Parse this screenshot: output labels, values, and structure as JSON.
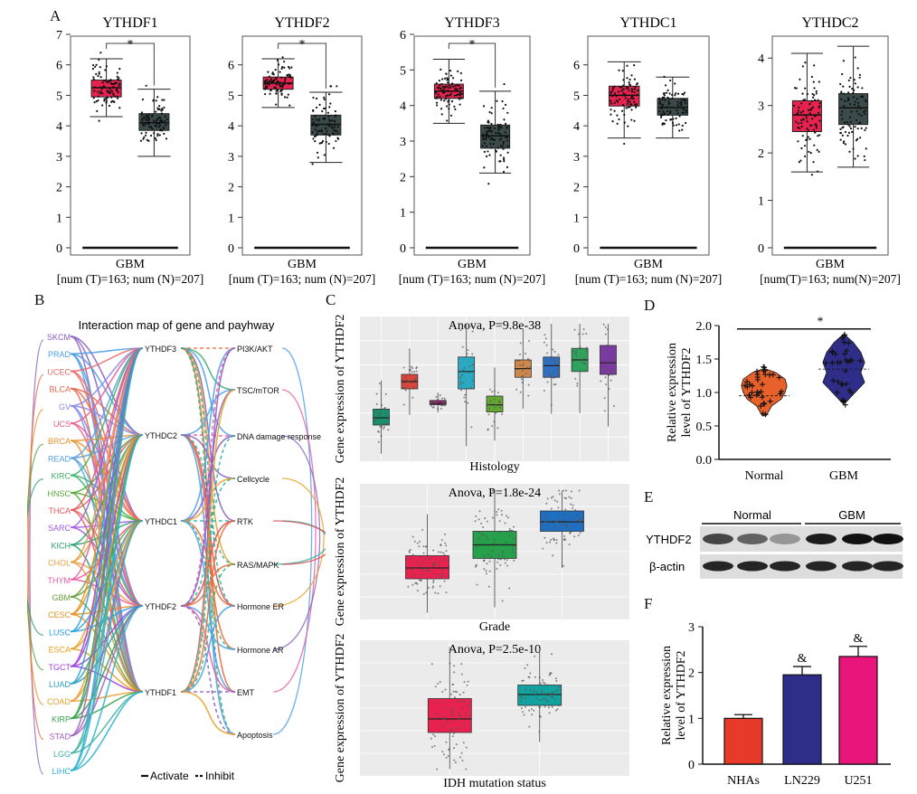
{
  "panel_labels": {
    "A": "A",
    "B": "B",
    "C": "C",
    "D": "D",
    "E": "E",
    "F": "F"
  },
  "colors": {
    "tumor": "#e8224f",
    "normal": "#3b4a4a",
    "mediumblue": "#2e2e8a",
    "pink": "#e8157a",
    "red": "#e83a2a"
  },
  "chart_data": [
    {
      "id": "A1",
      "type": "box",
      "title": "YTHDF1",
      "xlabel": "GBM",
      "sublabel": "[num (T)=163; num (N)=207]",
      "ylim": [
        0,
        7
      ],
      "yticks": [
        0,
        1,
        2,
        3,
        4,
        5,
        6,
        7
      ],
      "sig": "*",
      "groups": [
        {
          "name": "T",
          "q1": 4.95,
          "median": 5.25,
          "q3": 5.5,
          "whislo": 4.3,
          "whishi": 6.2
        },
        {
          "name": "N",
          "q1": 3.85,
          "median": 4.1,
          "q3": 4.4,
          "whislo": 3.0,
          "whishi": 5.2
        }
      ]
    },
    {
      "id": "A2",
      "type": "box",
      "title": "YTHDF2",
      "xlabel": "GBM",
      "sublabel": "[num (T)=163; num (N)=207]",
      "ylim": [
        0,
        7
      ],
      "yticks": [
        0,
        1,
        2,
        3,
        4,
        5,
        6
      ],
      "sig": "*",
      "groups": [
        {
          "name": "T",
          "q1": 5.2,
          "median": 5.4,
          "q3": 5.6,
          "whislo": 4.6,
          "whishi": 6.2
        },
        {
          "name": "N",
          "q1": 3.7,
          "median": 4.05,
          "q3": 4.35,
          "whislo": 2.8,
          "whishi": 5.1
        }
      ]
    },
    {
      "id": "A3",
      "type": "box",
      "title": "YTHDF3",
      "xlabel": "GBM",
      "sublabel": "[num (T)=163; num (N)=207]",
      "ylim": [
        0,
        6
      ],
      "yticks": [
        0,
        1,
        2,
        3,
        4,
        5,
        6
      ],
      "sig": "*",
      "groups": [
        {
          "name": "T",
          "q1": 4.2,
          "median": 4.4,
          "q3": 4.6,
          "whislo": 3.5,
          "whishi": 5.3
        },
        {
          "name": "N",
          "q1": 2.8,
          "median": 3.15,
          "q3": 3.45,
          "whislo": 2.1,
          "whishi": 4.4
        }
      ]
    },
    {
      "id": "A4",
      "type": "box",
      "title": "YTHDC1",
      "xlabel": "GBM",
      "sublabel": "[num (T)=163; num (N)=207]",
      "ylim": [
        0,
        7
      ],
      "yticks": [
        0,
        1,
        2,
        3,
        4,
        5,
        6
      ],
      "sig": "",
      "groups": [
        {
          "name": "T",
          "q1": 4.65,
          "median": 5.0,
          "q3": 5.3,
          "whislo": 3.6,
          "whishi": 6.1
        },
        {
          "name": "N",
          "q1": 4.35,
          "median": 4.6,
          "q3": 4.9,
          "whislo": 3.6,
          "whishi": 5.6
        }
      ]
    },
    {
      "id": "A5",
      "type": "box",
      "title": "YTHDC2",
      "xlabel": "GBM",
      "sublabel": "[num(T)=163; num(N)=207]",
      "ylim": [
        0,
        4.5
      ],
      "yticks": [
        0,
        1,
        2,
        3,
        4
      ],
      "sig": "",
      "groups": [
        {
          "name": "T",
          "q1": 2.45,
          "median": 2.8,
          "q3": 3.1,
          "whislo": 1.6,
          "whishi": 4.1
        },
        {
          "name": "N",
          "q1": 2.6,
          "median": 2.95,
          "q3": 3.25,
          "whislo": 1.7,
          "whishi": 4.25
        }
      ]
    },
    {
      "id": "B",
      "type": "network",
      "title": "Interaction map of gene and payhway",
      "cancers": [
        "SKCM",
        "PRAD",
        "UCEC",
        "BLCA",
        "GV",
        "UCS",
        "BRCA",
        "READ",
        "KIRC",
        "HNSC",
        "THCA",
        "SARC",
        "KICH",
        "CHOL",
        "THYM",
        "GBM",
        "CESC",
        "LUSC",
        "ESCA",
        "TGCT",
        "LUAD",
        "COAD",
        "KIRP",
        "STAD",
        "LGG",
        "LIHC"
      ],
      "genes": [
        "YTHDF3",
        "YTHDC2",
        "YTHDC1",
        "YTHDF2",
        "YTHDF1"
      ],
      "pathways": [
        "PI3K/AKT",
        "TSC/mTOR",
        "DNA damage response",
        "Cellcycle",
        "RTK",
        "RAS/MAPK",
        "Hormone ER",
        "Hormone AR",
        "EMT",
        "Apoptosis"
      ],
      "legend": {
        "activate": "Activate",
        "inhibit": "Inhibit"
      }
    },
    {
      "id": "C1",
      "type": "box",
      "ylabel": "Gene expression of YTHDF2",
      "xlabel": "Histology",
      "annotation": "Anova, P=9.8e-38",
      "groups": [
        {
          "median": 0.3,
          "q1": 0.25,
          "q3": 0.36,
          "color": "#1a8f6e"
        },
        {
          "median": 0.55,
          "q1": 0.5,
          "q3": 0.6,
          "color": "#d9453a"
        },
        {
          "median": 0.4,
          "q1": 0.39,
          "q3": 0.42,
          "color": "#a02070"
        },
        {
          "median": 0.62,
          "q1": 0.5,
          "q3": 0.72,
          "color": "#2aa9c0"
        },
        {
          "median": 0.39,
          "q1": 0.34,
          "q3": 0.45,
          "color": "#62a830"
        },
        {
          "median": 0.64,
          "q1": 0.58,
          "q3": 0.7,
          "color": "#d0884a"
        },
        {
          "median": 0.66,
          "q1": 0.58,
          "q3": 0.72,
          "color": "#2f6fc0"
        },
        {
          "median": 0.7,
          "q1": 0.62,
          "q3": 0.78,
          "color": "#2fa35e"
        },
        {
          "median": 0.68,
          "q1": 0.6,
          "q3": 0.8,
          "color": "#7a3aa0"
        }
      ]
    },
    {
      "id": "C2",
      "type": "box",
      "ylabel": "Gene expression of YTHDF2",
      "xlabel": "Grade",
      "annotation": "Anova, P=1.8e-24",
      "groups": [
        {
          "median": 0.38,
          "q1": 0.3,
          "q3": 0.47,
          "color": "#e8224f"
        },
        {
          "median": 0.55,
          "q1": 0.45,
          "q3": 0.65,
          "color": "#26a04a"
        },
        {
          "median": 0.72,
          "q1": 0.65,
          "q3": 0.8,
          "color": "#1f6fc0"
        }
      ]
    },
    {
      "id": "C3",
      "type": "box",
      "ylabel": "Gene expression of YTHDF2",
      "xlabel": "IDH mutation status",
      "annotation": "Anova, P=2.5e-10",
      "groups": [
        {
          "median": 0.42,
          "q1": 0.32,
          "q3": 0.57,
          "color": "#e8224f"
        },
        {
          "median": 0.6,
          "q1": 0.52,
          "q3": 0.67,
          "color": "#12a3a0"
        }
      ]
    },
    {
      "id": "D",
      "type": "violin",
      "ylabel": "Relative expression level of YTHDF2",
      "categories": [
        "Normal",
        "GBM"
      ],
      "ylim": [
        0,
        2
      ],
      "yticks": [
        "0.0",
        "0.5",
        "1.0",
        "1.5",
        "2.0"
      ],
      "sig": "*",
      "medians": [
        0.95,
        1.35
      ]
    },
    {
      "id": "E",
      "type": "blot",
      "groups": [
        "Normal",
        "GBM"
      ],
      "rows": [
        "YTHDF2",
        "β-actin"
      ]
    },
    {
      "id": "F",
      "type": "bar",
      "ylabel": "Relative expression level of YTHDF2",
      "categories": [
        "NHAs",
        "LN229",
        "U251"
      ],
      "values": [
        1.0,
        1.95,
        2.35
      ],
      "errors": [
        0.08,
        0.18,
        0.22
      ],
      "ylim": [
        0,
        3
      ],
      "yticks": [
        "0",
        "1",
        "2",
        "3"
      ],
      "marks": [
        "",
        "&",
        "&"
      ],
      "colors": [
        "#e83a2a",
        "#2e2e8a",
        "#e8157a"
      ]
    }
  ]
}
